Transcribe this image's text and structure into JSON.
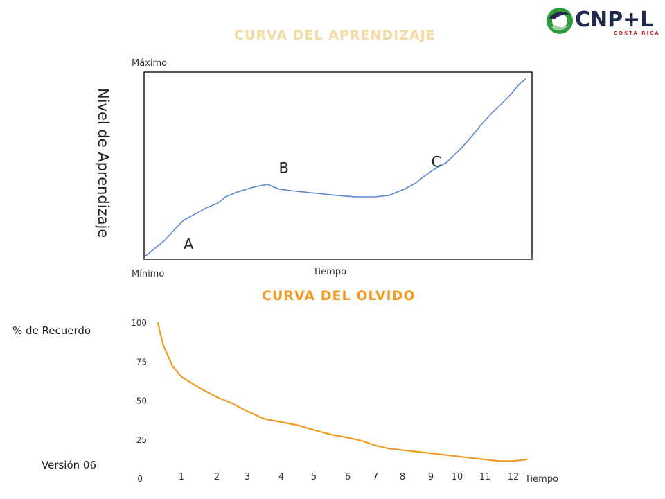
{
  "logo": {
    "text": "CNP+L",
    "subtext": "COSTA RICA",
    "colors": {
      "green": "#2e9a3a",
      "navy": "#1f2a4c",
      "red": "#d8262b"
    }
  },
  "footer": {
    "version": "Versión 06"
  },
  "chart_data": [
    {
      "type": "line",
      "title": "Curva del aprendizaje",
      "ylabel": "Nivel de Aprendizaje",
      "xlabel": "Tiempo",
      "y_max_label": "Máximo",
      "y_min_label": "Mínimo",
      "color": "#5b86d6",
      "x": [
        0,
        2,
        5,
        8,
        10,
        13,
        16,
        19,
        21,
        24,
        28,
        32,
        35,
        38,
        42,
        46,
        50,
        55,
        60,
        64,
        68,
        71,
        73,
        76,
        79,
        82,
        85,
        88,
        91,
        94,
        96,
        98,
        100
      ],
      "values": [
        2,
        6,
        12,
        20,
        25,
        29,
        33,
        36,
        40,
        43,
        46,
        48,
        45,
        44,
        43,
        42,
        41,
        40,
        40,
        41,
        45,
        49,
        53,
        58,
        62,
        69,
        77,
        86,
        94,
        101,
        106,
        112,
        116
      ],
      "ylim": [
        0,
        120
      ],
      "annotations": [
        {
          "label": "A",
          "x": 6,
          "y": 2
        },
        {
          "label": "B",
          "x": 35,
          "y": 50
        },
        {
          "label": "C",
          "x": 75,
          "y": 54
        }
      ]
    },
    {
      "type": "line",
      "title": "Curva del olvido",
      "ylabel": "% de Recuerdo",
      "xlabel": "Tiempo",
      "color": "#f29a22",
      "x": [
        -0.75,
        -0.5,
        0,
        0.5,
        1,
        1.5,
        2,
        2.5,
        3,
        3.5,
        4,
        4.5,
        5,
        5.5,
        6,
        6.5,
        7,
        7.5,
        8,
        8.5,
        9,
        9.5,
        10,
        10.5,
        11,
        11.5,
        12,
        12.5
      ],
      "values": [
        100,
        94,
        85,
        72,
        65,
        58,
        52,
        48,
        43,
        38,
        36,
        34,
        31,
        28,
        26,
        24,
        21,
        19,
        18,
        17,
        16,
        15,
        14,
        13,
        12,
        11,
        11,
        12
      ],
      "ylim": [
        0,
        100
      ],
      "xlim": [
        0,
        13
      ],
      "y_ticks": [
        0,
        25,
        50,
        75,
        100
      ],
      "x_ticks": [
        1,
        2,
        3,
        4,
        5,
        6,
        7,
        8,
        9,
        10,
        11,
        12
      ]
    }
  ]
}
